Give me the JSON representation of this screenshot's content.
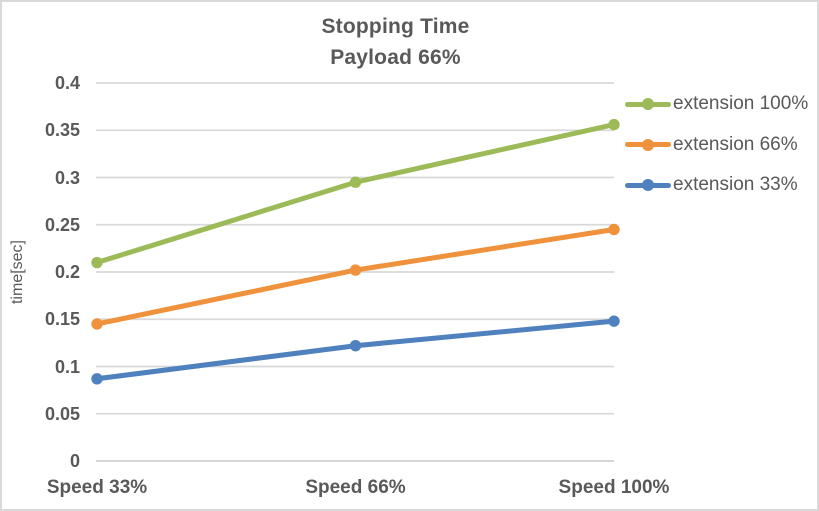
{
  "window": {
    "background": "#FFFFFF",
    "border_color": "#D9D9D9"
  },
  "chart_data": {
    "type": "line",
    "title": "Stopping Time",
    "subtitle": "Payload 66%",
    "ylabel": "time[sec]",
    "xlabel": "",
    "categories": [
      "Speed 33%",
      "Speed 66%",
      "Speed 100%"
    ],
    "series": [
      {
        "name": "extension 100%",
        "color": "#9CBB58",
        "values": [
          0.21,
          0.295,
          0.356
        ]
      },
      {
        "name": "extension 66%",
        "color": "#F0913C",
        "values": [
          0.145,
          0.202,
          0.245
        ]
      },
      {
        "name": "extension 33%",
        "color": "#4E81BD",
        "values": [
          0.087,
          0.122,
          0.148
        ]
      }
    ],
    "ylim": [
      0,
      0.4
    ],
    "yticks": [
      0.4,
      0.35,
      0.3,
      0.25,
      0.2,
      0.15,
      0.1,
      0.05,
      0
    ],
    "ytick_labels": [
      "0.4",
      "0.35",
      "0.3",
      "0.25",
      "0.2",
      "0.15",
      "0.1",
      "0.05",
      "0"
    ],
    "grid": true,
    "legend_position": "right",
    "text_color": "#595959",
    "grid_color": "#D9D9D9",
    "axis_line_color": "#CFCFCF",
    "marker": "circle"
  }
}
